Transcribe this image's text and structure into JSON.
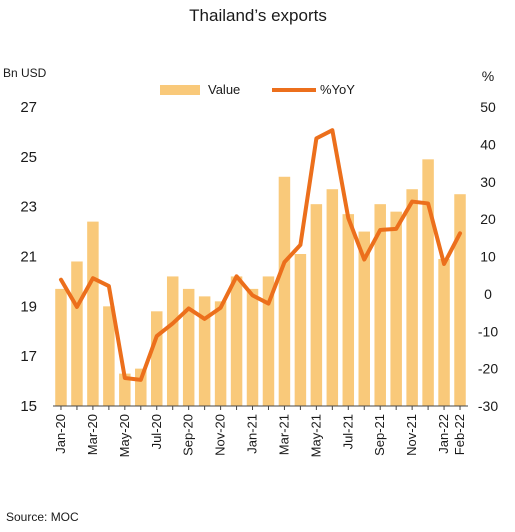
{
  "chart_data": {
    "type": "bar",
    "title": "Thailand’s exports",
    "left_unit": "Bn USD",
    "right_unit": "%",
    "source": "Source: MOC",
    "ylim_left": [
      15,
      27
    ],
    "yticks_left": [
      "15",
      "17",
      "19",
      "21",
      "23",
      "25",
      "27"
    ],
    "ylim_right": [
      -30,
      50
    ],
    "yticks_right": [
      "-30",
      "-20",
      "-10",
      "0",
      "10",
      "20",
      "30",
      "40",
      "50"
    ],
    "legend_position": "top",
    "grid": false,
    "bar_color": "#f9c97a",
    "line_color": "#ec6f1c",
    "categories": [
      "Jan-20",
      "Feb-20",
      "Mar-20",
      "Apr-20",
      "May-20",
      "Jun-20",
      "Jul-20",
      "Aug-20",
      "Sep-20",
      "Oct-20",
      "Nov-20",
      "Dec-20",
      "Jan-21",
      "Feb-21",
      "Mar-21",
      "Apr-21",
      "May-21",
      "Jun-21",
      "Jul-21",
      "Aug-21",
      "Sep-21",
      "Oct-21",
      "Nov-21",
      "Dec-21",
      "Jan-22",
      "Feb-22"
    ],
    "x_tick_labels": [
      "Jan-20",
      "",
      "Mar-20",
      "",
      "May-20",
      "",
      "Jul-20",
      "",
      "Sep-20",
      "",
      "Nov-20",
      "",
      "Jan-21",
      "",
      "Mar-21",
      "",
      "May-21",
      "",
      "Jul-21",
      "",
      "Sep-21",
      "",
      "Nov-21",
      "",
      "Jan-22",
      "Feb-22"
    ],
    "series": [
      {
        "name": "Value",
        "type": "bar",
        "axis": "left",
        "values": [
          19.7,
          20.8,
          22.4,
          19.0,
          16.3,
          16.5,
          18.8,
          20.2,
          19.7,
          19.4,
          19.2,
          20.2,
          19.7,
          20.2,
          24.2,
          21.1,
          23.1,
          23.7,
          22.7,
          22.0,
          23.1,
          22.8,
          23.7,
          24.9,
          20.9,
          23.5
        ]
      },
      {
        "name": "%YoY",
        "type": "line",
        "axis": "right",
        "values": [
          3.8,
          -3.5,
          4.2,
          2.1,
          -22.5,
          -23.0,
          -11.3,
          -7.9,
          -3.9,
          -6.7,
          -3.7,
          4.7,
          -0.4,
          -2.6,
          8.5,
          13.1,
          41.6,
          43.8,
          20.3,
          9.2,
          17.1,
          17.4,
          24.7,
          24.2,
          8.0,
          16.2
        ]
      }
    ]
  }
}
